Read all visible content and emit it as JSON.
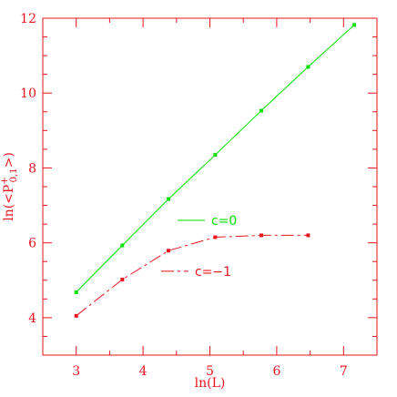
{
  "chart_data": {
    "type": "line",
    "xlabel": "ln(L)",
    "ylabel": "ln(<P+0,1>)",
    "xlim": [
      2.5,
      7.5
    ],
    "ylim": [
      3,
      12
    ],
    "x_ticks": [
      "3",
      "4",
      "5",
      "6",
      "7"
    ],
    "y_ticks": [
      "4",
      "6",
      "8",
      "10",
      "12"
    ],
    "grid": false,
    "series": [
      {
        "name": "c=0",
        "color": "#00e000",
        "dash": "solid",
        "points": [
          [
            3.0,
            4.68
          ],
          [
            3.69,
            5.93
          ],
          [
            4.38,
            7.17
          ],
          [
            5.08,
            8.35
          ],
          [
            5.77,
            9.53
          ],
          [
            6.47,
            10.7
          ],
          [
            7.16,
            11.82
          ]
        ]
      },
      {
        "name": "c=−1",
        "color": "#e8141e",
        "dash": "dashed",
        "points": [
          [
            3.0,
            4.05
          ],
          [
            3.69,
            5.02
          ],
          [
            4.38,
            5.79
          ],
          [
            5.08,
            6.15
          ],
          [
            5.77,
            6.2
          ],
          [
            6.47,
            6.2
          ]
        ]
      }
    ]
  },
  "colors": {
    "axis": "#e8141e"
  }
}
